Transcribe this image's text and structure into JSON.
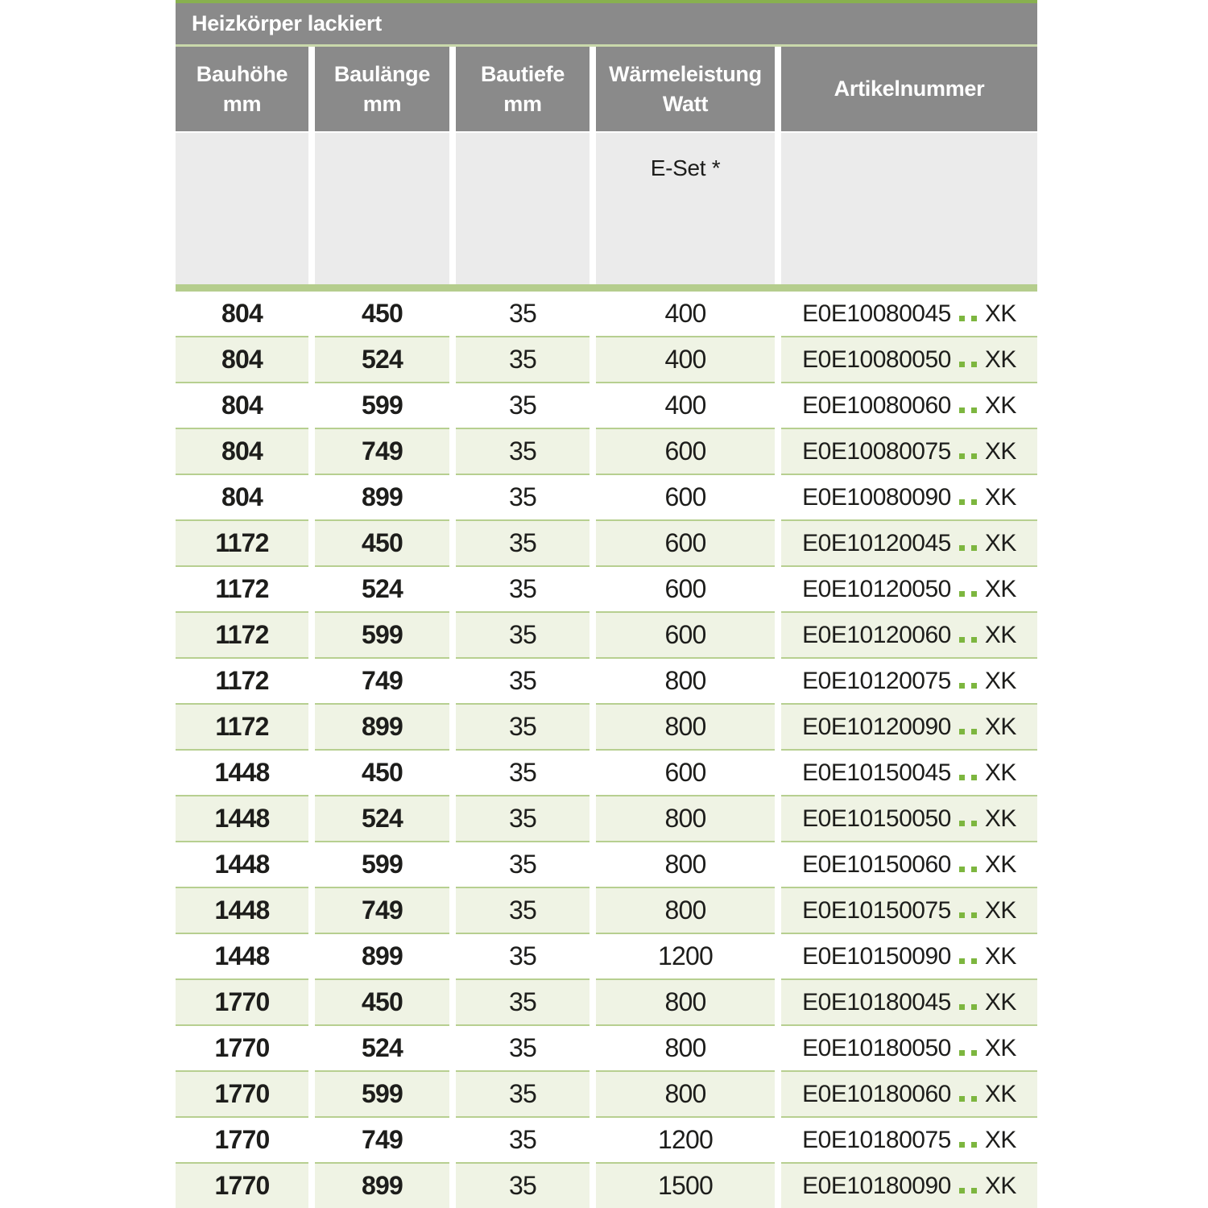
{
  "colors": {
    "header_gray": "#8a8a8a",
    "subheader_gray": "#ebebeb",
    "top_green": "#88b04f",
    "pale_line_green": "#c9d8ab",
    "bar_green": "#b5cd8d",
    "sep_green": "#b7cf90",
    "row_green": "#eff3e4",
    "dot_green": "#7db63f",
    "text_dark": "#1d1d1b"
  },
  "table": {
    "title": "Heizkörper lackiert",
    "columns": [
      {
        "line1": "Bauhöhe",
        "line2": "mm"
      },
      {
        "line1": "Baulänge",
        "line2": "mm"
      },
      {
        "line1": "Bautiefe",
        "line2": "mm"
      },
      {
        "line1": "Wärmeleistung",
        "line2": "Watt"
      },
      {
        "line1": "Artikelnummer",
        "line2": ""
      }
    ],
    "subheader": {
      "eset_label": "E-Set *"
    },
    "artikel_suffix": "XK",
    "rows": [
      {
        "bauhoehe": "804",
        "baulaenge": "450",
        "bautiefe": "35",
        "watt": "400",
        "artikel": "E0E10080045",
        "suffix": "XK"
      },
      {
        "bauhoehe": "804",
        "baulaenge": "524",
        "bautiefe": "35",
        "watt": "400",
        "artikel": "E0E10080050",
        "suffix": "XK"
      },
      {
        "bauhoehe": "804",
        "baulaenge": "599",
        "bautiefe": "35",
        "watt": "400",
        "artikel": "E0E10080060",
        "suffix": "XK"
      },
      {
        "bauhoehe": "804",
        "baulaenge": "749",
        "bautiefe": "35",
        "watt": "600",
        "artikel": "E0E10080075",
        "suffix": "XK"
      },
      {
        "bauhoehe": "804",
        "baulaenge": "899",
        "bautiefe": "35",
        "watt": "600",
        "artikel": "E0E10080090",
        "suffix": "XK"
      },
      {
        "bauhoehe": "1172",
        "baulaenge": "450",
        "bautiefe": "35",
        "watt": "600",
        "artikel": "E0E10120045",
        "suffix": "XK"
      },
      {
        "bauhoehe": "1172",
        "baulaenge": "524",
        "bautiefe": "35",
        "watt": "600",
        "artikel": "E0E10120050",
        "suffix": "XK"
      },
      {
        "bauhoehe": "1172",
        "baulaenge": "599",
        "bautiefe": "35",
        "watt": "600",
        "artikel": "E0E10120060",
        "suffix": "XK"
      },
      {
        "bauhoehe": "1172",
        "baulaenge": "749",
        "bautiefe": "35",
        "watt": "800",
        "artikel": "E0E10120075",
        "suffix": "XK"
      },
      {
        "bauhoehe": "1172",
        "baulaenge": "899",
        "bautiefe": "35",
        "watt": "800",
        "artikel": "E0E10120090",
        "suffix": "XK"
      },
      {
        "bauhoehe": "1448",
        "baulaenge": "450",
        "bautiefe": "35",
        "watt": "600",
        "artikel": "E0E10150045",
        "suffix": "XK"
      },
      {
        "bauhoehe": "1448",
        "baulaenge": "524",
        "bautiefe": "35",
        "watt": "800",
        "artikel": "E0E10150050",
        "suffix": "XK"
      },
      {
        "bauhoehe": "1448",
        "baulaenge": "599",
        "bautiefe": "35",
        "watt": "800",
        "artikel": "E0E10150060",
        "suffix": "XK"
      },
      {
        "bauhoehe": "1448",
        "baulaenge": "749",
        "bautiefe": "35",
        "watt": "800",
        "artikel": "E0E10150075",
        "suffix": "XK"
      },
      {
        "bauhoehe": "1448",
        "baulaenge": "899",
        "bautiefe": "35",
        "watt": "1200",
        "artikel": "E0E10150090",
        "suffix": "XK"
      },
      {
        "bauhoehe": "1770",
        "baulaenge": "450",
        "bautiefe": "35",
        "watt": "800",
        "artikel": "E0E10180045",
        "suffix": "XK"
      },
      {
        "bauhoehe": "1770",
        "baulaenge": "524",
        "bautiefe": "35",
        "watt": "800",
        "artikel": "E0E10180050",
        "suffix": "XK"
      },
      {
        "bauhoehe": "1770",
        "baulaenge": "599",
        "bautiefe": "35",
        "watt": "800",
        "artikel": "E0E10180060",
        "suffix": "XK"
      },
      {
        "bauhoehe": "1770",
        "baulaenge": "749",
        "bautiefe": "35",
        "watt": "1200",
        "artikel": "E0E10180075",
        "suffix": "XK"
      },
      {
        "bauhoehe": "1770",
        "baulaenge": "899",
        "bautiefe": "35",
        "watt": "1500",
        "artikel": "E0E10180090",
        "suffix": "XK"
      }
    ]
  }
}
